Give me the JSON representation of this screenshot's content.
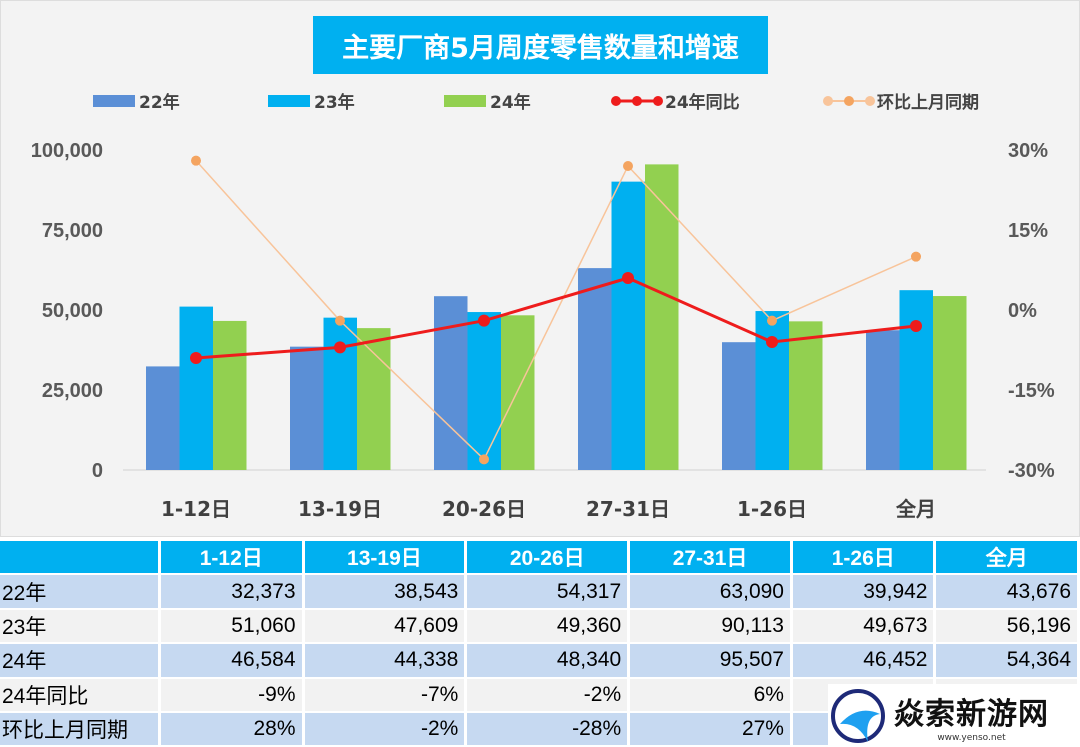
{
  "title": "主要厂商5月周度零售数量和增速",
  "legend": [
    "22年",
    "23年",
    "24年",
    "24年同比",
    "环比上月同期"
  ],
  "colors": {
    "22年": "#5b8fd6",
    "23年": "#00b0f0",
    "24年": "#92d050",
    "24年同比": "#ee1c1c",
    "环比上月同期": "#f8c49a",
    "环比_marker": "#f4a460"
  },
  "chart_data": {
    "type": "bar+line",
    "title": "主要厂商5月周度零售数量和增速",
    "categories": [
      "1-12日",
      "13-19日",
      "20-26日",
      "27-31日",
      "1-26日",
      "全月"
    ],
    "left_axis": {
      "ylim": [
        0,
        100000
      ],
      "ticks": [
        "0",
        "25,000",
        "50,000",
        "75,000",
        "100,000"
      ]
    },
    "right_axis": {
      "ylim": [
        -30,
        30
      ],
      "ticks": [
        "-30%",
        "-15%",
        "0%",
        "15%",
        "30%"
      ]
    },
    "grid": false,
    "legend_position": "top",
    "bar_series": [
      {
        "name": "22年",
        "values": [
          32373,
          38543,
          54317,
          63090,
          39942,
          43676
        ]
      },
      {
        "name": "23年",
        "values": [
          51060,
          47609,
          49360,
          90113,
          49673,
          56196
        ]
      },
      {
        "name": "24年",
        "values": [
          46584,
          44338,
          48340,
          95507,
          46452,
          54364
        ]
      }
    ],
    "line_series": [
      {
        "name": "24年同比",
        "values": [
          -9,
          -7,
          -2,
          6,
          -6,
          -3
        ]
      },
      {
        "name": "环比上月同期",
        "values": [
          28,
          -2,
          -28,
          27,
          -2,
          10
        ]
      }
    ]
  },
  "table": {
    "headers": [
      "",
      "1-12日",
      "13-19日",
      "20-26日",
      "27-31日",
      "1-26日",
      "全月"
    ],
    "rows": [
      [
        "22年",
        "32,373",
        "38,543",
        "54,317",
        "63,090",
        "39,942",
        "43,676"
      ],
      [
        "23年",
        "51,060",
        "47,609",
        "49,360",
        "90,113",
        "49,673",
        "56,196"
      ],
      [
        "24年",
        "46,584",
        "44,338",
        "48,340",
        "95,507",
        "46,452",
        "54,364"
      ],
      [
        "24年同比",
        "-9%",
        "-7%",
        "-2%",
        "6%",
        "",
        ""
      ],
      [
        "环比上月同期",
        "28%",
        "-2%",
        "-28%",
        "27%",
        "",
        ""
      ]
    ]
  },
  "watermark": {
    "text": "焱索新游网",
    "url": "www.yenso.net"
  }
}
